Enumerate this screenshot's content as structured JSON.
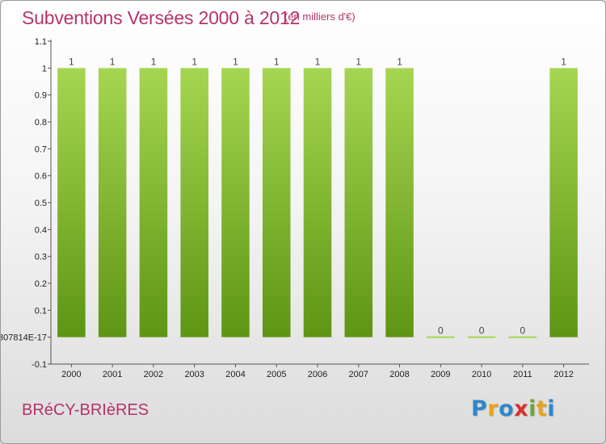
{
  "header": {
    "title": "Subventions Versées 2000 à 2012",
    "unit": "(en milliers d'€)"
  },
  "footer": {
    "commune": "BRéCY-BRIèRES",
    "logo_letters": [
      "P",
      "r",
      "o",
      "x",
      "i",
      "t",
      "i"
    ],
    "logo_colors": [
      "#2f86c8",
      "#e9a21a",
      "#2f86c8",
      "#d8302d",
      "#6aa83a",
      "#e9a21a",
      "#2f86c8"
    ]
  },
  "colors": {
    "bar_light": "#a5d651",
    "bar_dark": "#5e9514",
    "text_accent": "#b5336a"
  },
  "chart_data": {
    "type": "bar",
    "title": "Subventions Versées 2000 à 2012",
    "xlabel": "",
    "ylabel": "",
    "categories": [
      "2000",
      "2001",
      "2002",
      "2003",
      "2004",
      "2005",
      "2006",
      "2007",
      "2008",
      "2009",
      "2010",
      "2011",
      "2012"
    ],
    "values": [
      1,
      1,
      1,
      1,
      1,
      1,
      1,
      1,
      1,
      0,
      0,
      0,
      1
    ],
    "data_labels": [
      "1",
      "1",
      "1",
      "1",
      "1",
      "1",
      "1",
      "1",
      "1",
      "0",
      "0",
      "0",
      "1"
    ],
    "ylim": [
      -0.1,
      1.1
    ],
    "y_ticks": [
      -0.1,
      0,
      0.1,
      0.2,
      0.3,
      0.4,
      0.5,
      0.6,
      0.7,
      0.8,
      0.9,
      1,
      1.1
    ],
    "y_tick_labels": [
      "-0.1",
      "307814E-17",
      "0.1",
      "0.2",
      "0.3",
      "0.4",
      "0.5",
      "0.6",
      "0.7",
      "0.8",
      "0.9",
      "1",
      "1.1"
    ],
    "grid": false,
    "legend": "none"
  }
}
